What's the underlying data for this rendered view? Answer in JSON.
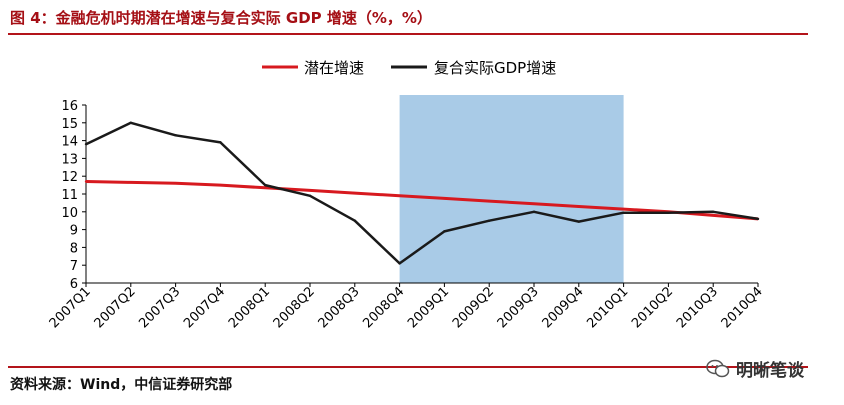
{
  "title": "图 4：金融危机时期潜在增速与复合实际 GDP 增速（%，%）",
  "source": "资料来源：Wind，中信证券研究部",
  "watermark": "明晰笔谈",
  "colors": {
    "potential": "#d7191f",
    "actual": "#1a1a1a",
    "shade": "#a9cbe7",
    "rule": "#b3141a"
  },
  "chart_data": {
    "type": "line",
    "categories": [
      "2007Q1",
      "2007Q2",
      "2007Q3",
      "2007Q4",
      "2008Q1",
      "2008Q2",
      "2008Q3",
      "2008Q4",
      "2009Q1",
      "2009Q2",
      "2009Q3",
      "2009Q4",
      "2010Q1",
      "2010Q2",
      "2010Q3",
      "2010Q4"
    ],
    "series": [
      {
        "name": "潜在增速",
        "color": "#d7191f",
        "values": [
          11.7,
          11.65,
          11.6,
          11.5,
          11.35,
          11.2,
          11.05,
          10.9,
          10.75,
          10.6,
          10.45,
          10.3,
          10.15,
          10.0,
          9.8,
          9.6
        ]
      },
      {
        "name": "复合实际GDP增速",
        "color": "#1a1a1a",
        "values": [
          13.8,
          15.0,
          14.3,
          13.9,
          11.5,
          10.9,
          9.5,
          7.1,
          8.9,
          9.5,
          10.0,
          9.45,
          9.95,
          9.95,
          10.0,
          9.6
        ]
      }
    ],
    "shaded_range": [
      "2008Q4",
      "2010Q1"
    ],
    "ylim": [
      6,
      16
    ],
    "yticks": [
      6,
      7,
      8,
      9,
      10,
      11,
      12,
      13,
      14,
      15,
      16
    ],
    "xlabel": "",
    "ylabel": "",
    "legend_position": "top"
  }
}
